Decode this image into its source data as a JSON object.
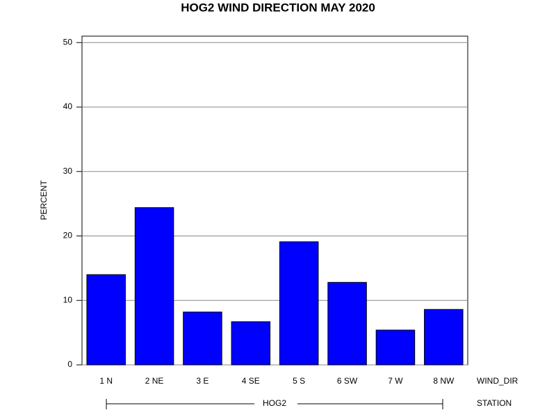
{
  "chart_data": {
    "type": "bar",
    "title": "HOG2 WIND DIRECTION MAY 2020",
    "y_label": "PERCENT",
    "x_label": "WIND_DIR",
    "group_label": "HOG2",
    "group_axis_label": "STATION",
    "categories": [
      "1 N",
      "2 NE",
      "3 E",
      "4 SE",
      "5 S",
      "6 SW",
      "7 W",
      "8 NW"
    ],
    "values": [
      14.0,
      24.4,
      8.2,
      6.7,
      19.1,
      12.8,
      5.4,
      8.6
    ],
    "color": "#0000ff",
    "ylim": [
      0,
      51
    ],
    "yticks": [
      0,
      10,
      20,
      30,
      40,
      50
    ],
    "grid": true
  }
}
